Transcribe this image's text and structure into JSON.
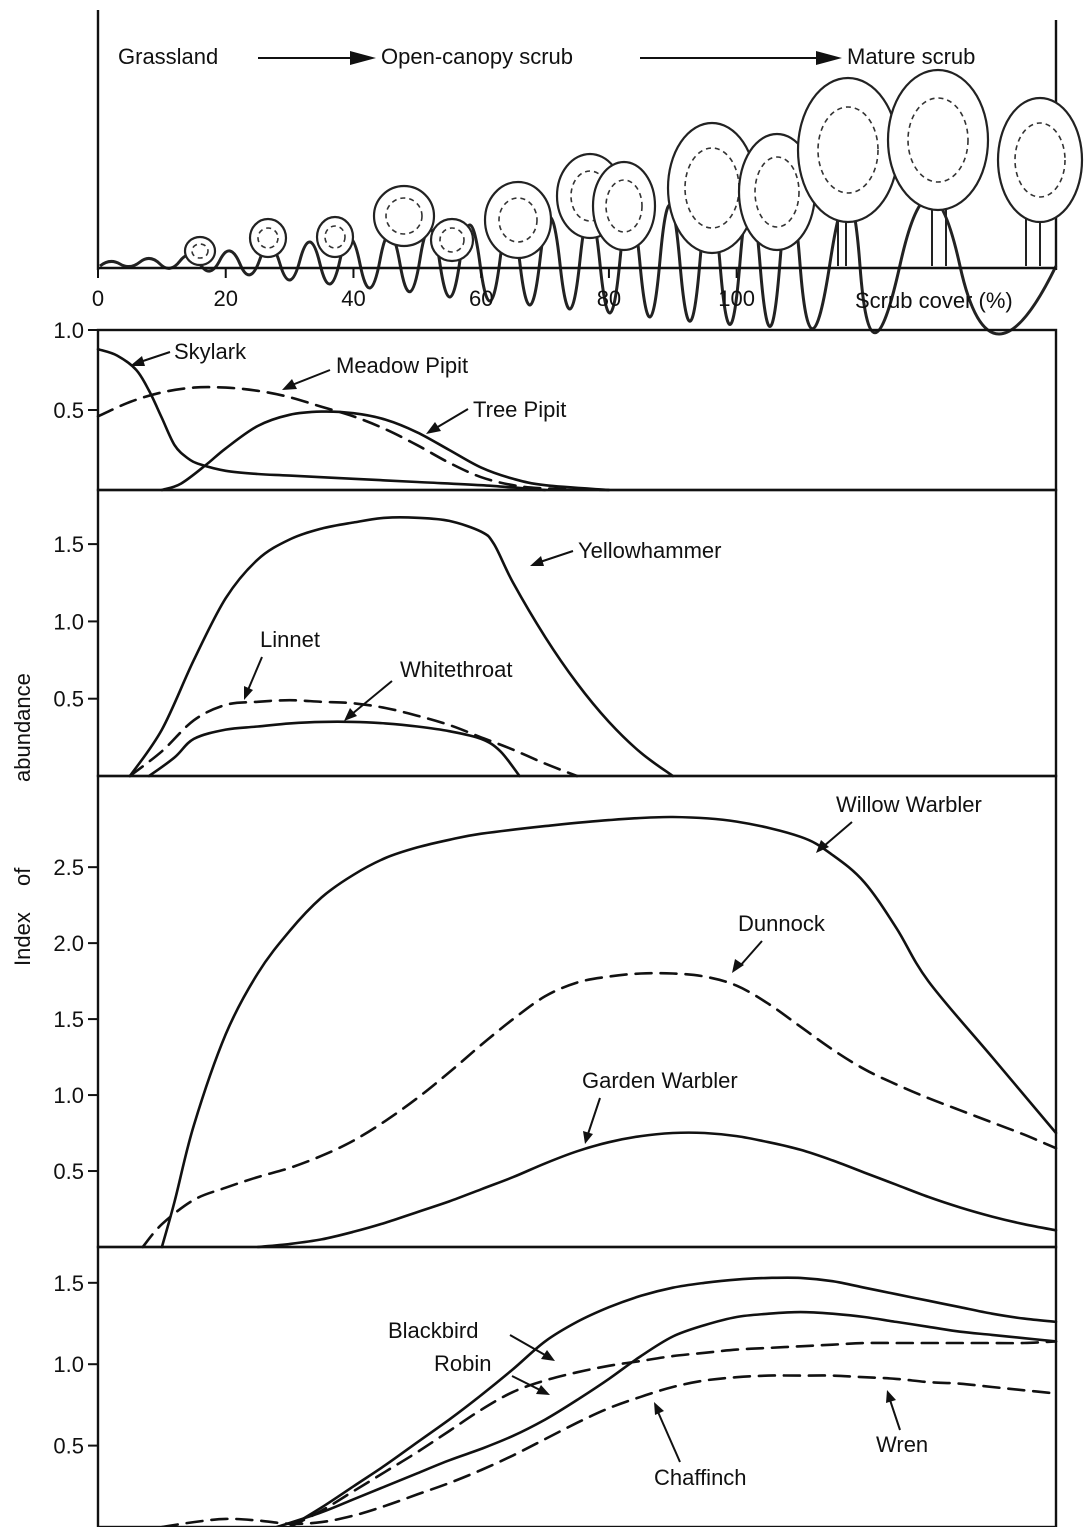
{
  "header": {
    "stages": [
      "Grassland",
      "Open-canopy scrub",
      "Mature scrub"
    ],
    "x_axis_label": "Scrub cover (%)",
    "x_ticks": [
      "0",
      "20",
      "40",
      "60",
      "80",
      "100"
    ]
  },
  "y_axis_label_parts": [
    "Index",
    "of",
    "abundance"
  ],
  "chart_data": [
    {
      "type": "line",
      "xlabel": "Scrub cover (%)",
      "ylabel": "Index of abundance",
      "xlim": [
        0,
        150
      ],
      "ylim": [
        0,
        1.0
      ],
      "y_ticks": [
        "0.5",
        "1.0"
      ],
      "y_tick_values": [
        0.5,
        1.0
      ],
      "series": [
        {
          "name": "Skylark",
          "dashed": false,
          "x": [
            0,
            3,
            6,
            8,
            10,
            12,
            14,
            16,
            20,
            25,
            30,
            40,
            50,
            60,
            70
          ],
          "y": [
            0.88,
            0.84,
            0.75,
            0.62,
            0.45,
            0.28,
            0.2,
            0.16,
            0.12,
            0.1,
            0.09,
            0.07,
            0.05,
            0.03,
            0.0
          ]
        },
        {
          "name": "Meadow Pipit",
          "dashed": true,
          "x": [
            0,
            5,
            10,
            15,
            20,
            25,
            30,
            35,
            40,
            45,
            50,
            55,
            60,
            65,
            70,
            80
          ],
          "y": [
            0.46,
            0.55,
            0.61,
            0.64,
            0.64,
            0.62,
            0.58,
            0.52,
            0.46,
            0.38,
            0.28,
            0.17,
            0.08,
            0.03,
            0.01,
            0.0
          ]
        },
        {
          "name": "Tree Pipit",
          "dashed": false,
          "x": [
            10,
            13,
            17,
            20,
            25,
            30,
            35,
            40,
            45,
            50,
            55,
            60,
            65,
            70,
            80
          ],
          "y": [
            0.0,
            0.04,
            0.16,
            0.26,
            0.4,
            0.47,
            0.49,
            0.48,
            0.44,
            0.36,
            0.25,
            0.14,
            0.07,
            0.03,
            0.0
          ]
        }
      ],
      "annotations": [
        "Skylark",
        "Meadow Pipit",
        "Tree Pipit"
      ]
    },
    {
      "type": "line",
      "xlabel": "Scrub cover (%)",
      "ylabel": "Index of abundance",
      "xlim": [
        0,
        150
      ],
      "ylim": [
        0,
        1.85
      ],
      "y_ticks": [
        "0.5",
        "1.0",
        "1.5"
      ],
      "y_tick_values": [
        0.5,
        1.0,
        1.5
      ],
      "series": [
        {
          "name": "Yellowhammer",
          "dashed": false,
          "x": [
            5,
            10,
            15,
            20,
            25,
            30,
            35,
            40,
            45,
            50,
            55,
            60,
            62,
            65,
            70,
            75,
            80,
            85,
            90
          ],
          "y": [
            0.0,
            0.3,
            0.75,
            1.15,
            1.4,
            1.53,
            1.6,
            1.64,
            1.67,
            1.67,
            1.65,
            1.58,
            1.5,
            1.25,
            0.9,
            0.6,
            0.35,
            0.15,
            0.0
          ]
        },
        {
          "name": "Linnet",
          "dashed": true,
          "x": [
            5,
            10,
            15,
            20,
            25,
            30,
            35,
            40,
            45,
            50,
            55,
            60,
            65,
            70,
            75
          ],
          "y": [
            0.0,
            0.16,
            0.36,
            0.46,
            0.48,
            0.49,
            0.48,
            0.47,
            0.44,
            0.39,
            0.33,
            0.25,
            0.17,
            0.08,
            0.0
          ]
        },
        {
          "name": "Whitethroat",
          "dashed": false,
          "x": [
            8,
            12,
            15,
            20,
            25,
            30,
            35,
            40,
            45,
            50,
            55,
            60,
            63,
            66
          ],
          "y": [
            0.0,
            0.12,
            0.24,
            0.3,
            0.32,
            0.34,
            0.35,
            0.35,
            0.34,
            0.32,
            0.29,
            0.24,
            0.16,
            0.0
          ]
        }
      ],
      "annotations": [
        "Yellowhammer",
        "Linnet",
        "Whitethroat"
      ]
    },
    {
      "type": "line",
      "xlabel": "Scrub cover (%)",
      "ylabel": "Index of abundance",
      "xlim": [
        0,
        150
      ],
      "ylim": [
        0,
        3.1
      ],
      "y_ticks": [
        "0.5",
        "1.0",
        "1.5",
        "2.0",
        "2.5"
      ],
      "y_tick_values": [
        0.5,
        1.0,
        1.5,
        2.0,
        2.5
      ],
      "series": [
        {
          "name": "Willow Warbler",
          "dashed": false,
          "x": [
            10,
            12,
            15,
            20,
            25,
            30,
            35,
            40,
            45,
            50,
            55,
            60,
            70,
            80,
            90,
            100,
            110,
            115,
            120,
            125,
            130,
            140,
            150
          ],
          "y": [
            0.0,
            0.3,
            0.8,
            1.4,
            1.8,
            2.08,
            2.3,
            2.45,
            2.56,
            2.63,
            2.68,
            2.72,
            2.77,
            2.81,
            2.83,
            2.8,
            2.7,
            2.58,
            2.4,
            2.1,
            1.75,
            1.25,
            0.75
          ]
        },
        {
          "name": "Dunnock",
          "dashed": true,
          "x": [
            7,
            10,
            15,
            20,
            25,
            30,
            35,
            40,
            45,
            50,
            55,
            60,
            65,
            70,
            75,
            80,
            85,
            90,
            95,
            100,
            105,
            110,
            115,
            120,
            125,
            130,
            135,
            140,
            145,
            150
          ],
          "y": [
            0.0,
            0.15,
            0.31,
            0.39,
            0.46,
            0.52,
            0.6,
            0.7,
            0.83,
            0.98,
            1.15,
            1.33,
            1.5,
            1.65,
            1.74,
            1.78,
            1.8,
            1.8,
            1.78,
            1.72,
            1.6,
            1.45,
            1.3,
            1.17,
            1.07,
            0.98,
            0.9,
            0.82,
            0.74,
            0.65
          ]
        },
        {
          "name": "Garden Warbler",
          "dashed": false,
          "x": [
            25,
            30,
            35,
            40,
            45,
            50,
            55,
            60,
            65,
            70,
            75,
            80,
            85,
            90,
            95,
            100,
            105,
            110,
            115,
            120,
            125,
            130,
            135,
            140,
            145,
            150
          ],
          "y": [
            0.0,
            0.02,
            0.05,
            0.1,
            0.16,
            0.23,
            0.3,
            0.38,
            0.46,
            0.55,
            0.63,
            0.69,
            0.73,
            0.75,
            0.75,
            0.73,
            0.69,
            0.64,
            0.57,
            0.49,
            0.41,
            0.33,
            0.26,
            0.2,
            0.15,
            0.11
          ]
        }
      ],
      "annotations": [
        "Willow Warbler",
        "Dunnock",
        "Garden Warbler"
      ]
    },
    {
      "type": "line",
      "xlabel": "Scrub cover (%)",
      "ylabel": "Index of abundance",
      "xlim": [
        0,
        150
      ],
      "ylim": [
        0,
        1.72
      ],
      "y_ticks": [
        "0.5",
        "1.0",
        "1.5"
      ],
      "y_tick_values": [
        0.5,
        1.0,
        1.5
      ],
      "series": [
        {
          "name": "Blackbird",
          "dashed": false,
          "x": [
            30,
            35,
            40,
            45,
            50,
            55,
            60,
            65,
            70,
            75,
            80,
            85,
            90,
            95,
            100,
            105,
            110,
            115,
            120,
            125,
            130,
            135,
            140,
            145,
            150
          ],
          "y": [
            0.0,
            0.12,
            0.25,
            0.38,
            0.52,
            0.66,
            0.81,
            0.97,
            1.14,
            1.26,
            1.35,
            1.42,
            1.47,
            1.5,
            1.52,
            1.53,
            1.53,
            1.51,
            1.47,
            1.43,
            1.39,
            1.35,
            1.31,
            1.28,
            1.26
          ]
        },
        {
          "name": "Robin",
          "dashed": true,
          "x": [
            30,
            35,
            40,
            45,
            50,
            55,
            60,
            65,
            70,
            75,
            80,
            85,
            90,
            95,
            100,
            105,
            110,
            115,
            120,
            125,
            130,
            135,
            140,
            145,
            150
          ],
          "y": [
            0.0,
            0.1,
            0.22,
            0.34,
            0.46,
            0.59,
            0.72,
            0.83,
            0.9,
            0.95,
            0.99,
            1.02,
            1.05,
            1.07,
            1.09,
            1.1,
            1.11,
            1.12,
            1.13,
            1.13,
            1.13,
            1.13,
            1.13,
            1.13,
            1.14
          ]
        },
        {
          "name": "Chaffinch",
          "dashed": false,
          "x": [
            28,
            35,
            40,
            45,
            50,
            55,
            60,
            65,
            70,
            75,
            80,
            85,
            90,
            95,
            100,
            105,
            110,
            115,
            120,
            125,
            130,
            135,
            140,
            145,
            150
          ],
          "y": [
            0.0,
            0.09,
            0.17,
            0.25,
            0.33,
            0.41,
            0.48,
            0.56,
            0.66,
            0.78,
            0.91,
            1.05,
            1.17,
            1.24,
            1.29,
            1.31,
            1.32,
            1.31,
            1.29,
            1.26,
            1.23,
            1.2,
            1.18,
            1.16,
            1.14
          ]
        },
        {
          "name": "Wren",
          "dashed": true,
          "x": [
            10,
            15,
            20,
            25,
            30,
            35,
            40,
            45,
            50,
            55,
            60,
            65,
            70,
            75,
            80,
            85,
            90,
            95,
            100,
            105,
            110,
            115,
            120,
            125,
            130,
            135,
            140,
            145,
            150
          ],
          "y": [
            0.0,
            0.03,
            0.05,
            0.04,
            0.02,
            0.03,
            0.07,
            0.13,
            0.2,
            0.27,
            0.35,
            0.44,
            0.54,
            0.64,
            0.73,
            0.8,
            0.86,
            0.9,
            0.92,
            0.93,
            0.93,
            0.93,
            0.92,
            0.91,
            0.89,
            0.88,
            0.86,
            0.84,
            0.82
          ]
        }
      ],
      "annotations": [
        "Blackbird",
        "Robin",
        "Chaffinch",
        "Wren"
      ]
    }
  ]
}
